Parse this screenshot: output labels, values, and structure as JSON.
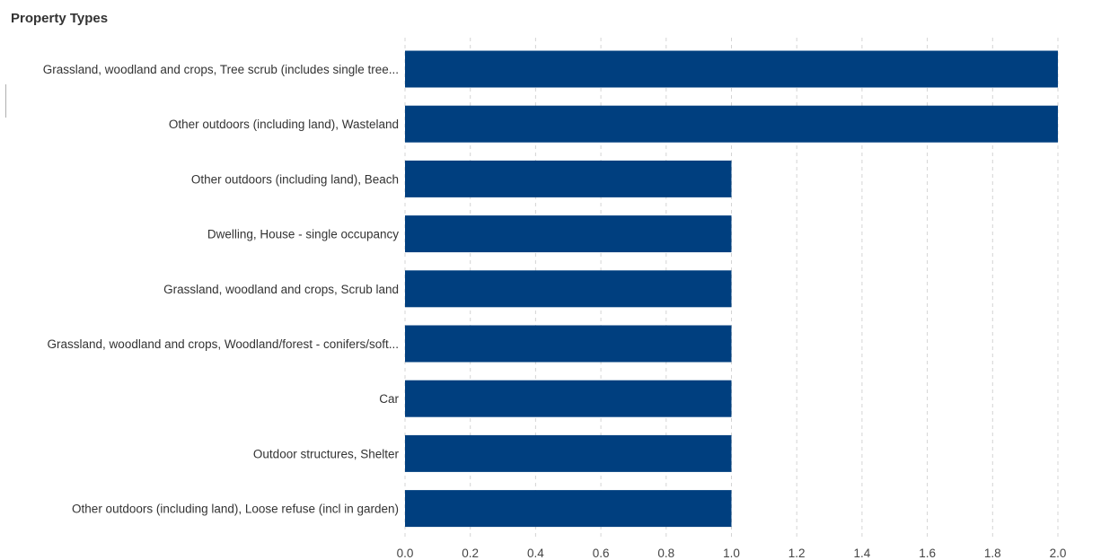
{
  "chart_data": {
    "type": "bar",
    "orientation": "horizontal",
    "title": "Property Types",
    "xlabel": "",
    "ylabel": "",
    "categories": [
      "Grassland, woodland and crops, Tree scrub (includes single tree...",
      "Other outdoors (including land), Wasteland",
      "Other outdoors (including land), Beach",
      "Dwelling, House - single occupancy",
      "Grassland, woodland and crops, Scrub land",
      "Grassland, woodland and crops, Woodland/forest - conifers/soft...",
      "Car",
      "Outdoor structures, Shelter",
      "Other outdoors (including land), Loose refuse (incl in garden)"
    ],
    "values": [
      2,
      2,
      1,
      1,
      1,
      1,
      1,
      1,
      1
    ],
    "xlim": [
      0,
      2.0
    ],
    "ticks": [
      "0.0",
      "0.2",
      "0.4",
      "0.6",
      "0.8",
      "1.0",
      "1.2",
      "1.4",
      "1.6",
      "1.8",
      "2.0"
    ],
    "grid": "vertical-dashed",
    "legend": "none",
    "bar_color": "#003f7f",
    "grid_color": "#d4d4d4"
  }
}
